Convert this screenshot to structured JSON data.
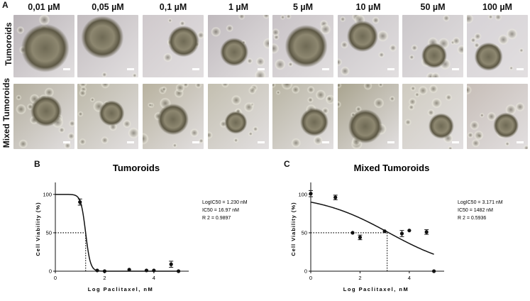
{
  "panel_a": {
    "letter": "A",
    "concentrations": [
      "0,01 µM",
      "0,05 µM",
      "0,1 µM",
      "1 µM",
      "5 µM",
      "10 µM",
      "50 µM",
      "100 µM"
    ],
    "row_labels": [
      "Tumoroids",
      "Mixed Tumoroids"
    ]
  },
  "panel_b": {
    "letter": "B",
    "stats": {
      "logic": "LogIC50 = 1.230 nM",
      "ic": "IC50 = 16.97 nM",
      "r2": "R 2 = 0.9897"
    }
  },
  "panel_c": {
    "letter": "C",
    "stats": {
      "logic": "LogIC50 = 3.171 nM",
      "ic": "IC50 = 1482 nM",
      "r2": "R 2 = 0.5936"
    }
  },
  "chart_data": [
    {
      "type": "scatter",
      "title": "Tumoroids",
      "xlabel": "Log Paclitaxel, nM",
      "ylabel": "Cell Viability (%)",
      "xlim": [
        0,
        5.3
      ],
      "ylim": [
        0,
        110
      ],
      "xticks": [
        0,
        2,
        4
      ],
      "yticks": [
        0,
        50,
        100
      ],
      "points": [
        {
          "x": 1.0,
          "y": 90,
          "err": 4
        },
        {
          "x": 1.7,
          "y": 1,
          "err": 0
        },
        {
          "x": 2.0,
          "y": 0,
          "err": 0
        },
        {
          "x": 3.0,
          "y": 2,
          "err": 0
        },
        {
          "x": 3.7,
          "y": 1,
          "err": 0
        },
        {
          "x": 4.0,
          "y": 1,
          "err": 0
        },
        {
          "x": 4.7,
          "y": 9,
          "err": 4
        },
        {
          "x": 5.0,
          "y": 0,
          "err": 0
        }
      ],
      "fit": {
        "model": "sigmoid",
        "top": 100,
        "bottom": 0,
        "logIC50": 1.23,
        "hill": -4.5
      },
      "ic50_guide": {
        "x": 1.23,
        "y": 50
      }
    },
    {
      "type": "scatter",
      "title": "Mixed Tumoroids",
      "xlabel": "Log Paclitaxel, nM",
      "ylabel": "Cell Viability (%)",
      "xlim": [
        0,
        5.3
      ],
      "ylim": [
        0,
        110
      ],
      "xticks": [
        0,
        2,
        4
      ],
      "yticks": [
        0,
        50,
        100
      ],
      "points": [
        {
          "x": 0.0,
          "y": 101,
          "err": 4
        },
        {
          "x": 1.0,
          "y": 96,
          "err": 3
        },
        {
          "x": 1.7,
          "y": 50,
          "err": 0
        },
        {
          "x": 2.0,
          "y": 44,
          "err": 3
        },
        {
          "x": 3.0,
          "y": 52,
          "err": 0
        },
        {
          "x": 3.7,
          "y": 49,
          "err": 4
        },
        {
          "x": 4.0,
          "y": 53,
          "err": 0
        },
        {
          "x": 4.7,
          "y": 51,
          "err": 3
        },
        {
          "x": 5.0,
          "y": 0,
          "err": 0
        }
      ],
      "fit": {
        "model": "sigmoid",
        "top": 100,
        "bottom": 0,
        "logIC50": 3.171,
        "hill": -0.3
      },
      "ic50_guide": {
        "x": 3.1,
        "y": 50
      }
    }
  ]
}
